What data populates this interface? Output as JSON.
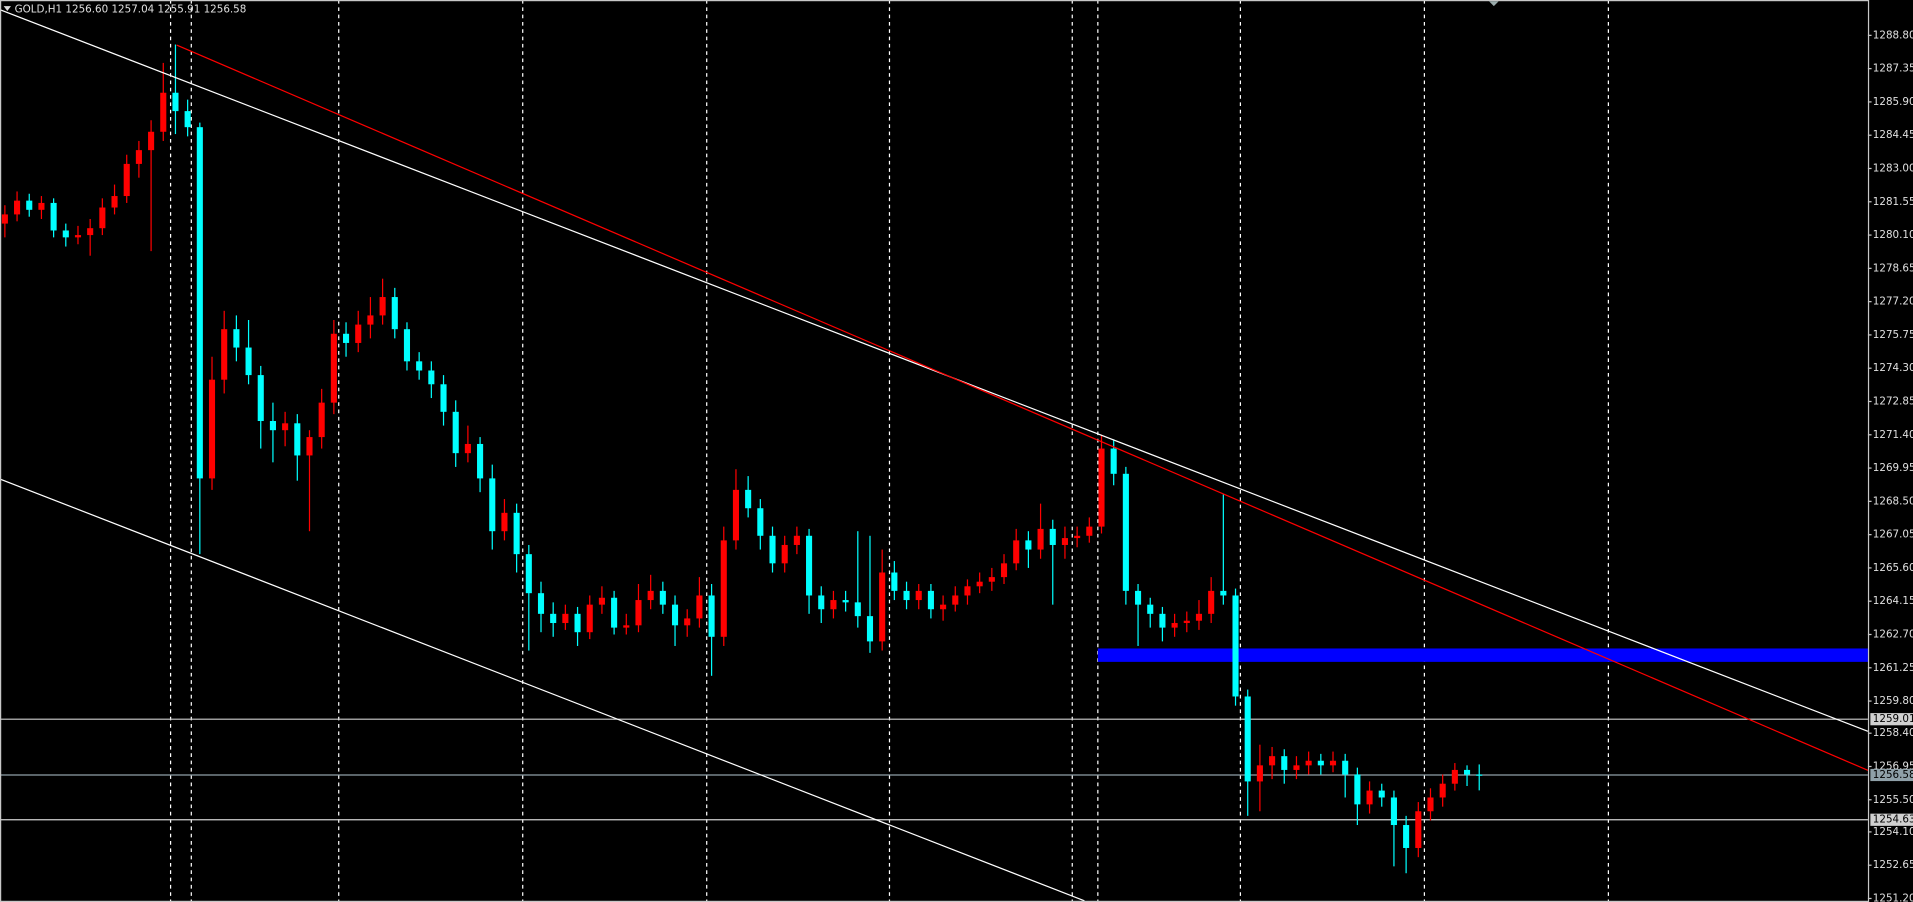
{
  "chart_data": {
    "type": "candlestick",
    "title": "GOLD,H1  1256.60 1257.04 1255.91 1256.58",
    "bull_color": "#ff0000",
    "bear_color": "#00ffff",
    "ylim": [
      1251.1,
      1290.34
    ],
    "yticks": [
      {
        "value": 1288.8,
        "label": "1288.80"
      },
      {
        "value": 1287.35,
        "label": "1287.35"
      },
      {
        "value": 1285.9,
        "label": "1285.90"
      },
      {
        "value": 1284.45,
        "label": "1284.45"
      },
      {
        "value": 1283.0,
        "label": "1283.00"
      },
      {
        "value": 1281.55,
        "label": "1281.55"
      },
      {
        "value": 1280.1,
        "label": "1280.10"
      },
      {
        "value": 1278.65,
        "label": "1278.65"
      },
      {
        "value": 1277.2,
        "label": "1277.20"
      },
      {
        "value": 1275.75,
        "label": "1275.75"
      },
      {
        "value": 1274.3,
        "label": "1274.30"
      },
      {
        "value": 1272.85,
        "label": "1272.85"
      },
      {
        "value": 1271.4,
        "label": "1271.40"
      },
      {
        "value": 1269.95,
        "label": "1269.95"
      },
      {
        "value": 1268.5,
        "label": "1268.50"
      },
      {
        "value": 1267.05,
        "label": "1267.05"
      },
      {
        "value": 1265.6,
        "label": "1265.60"
      },
      {
        "value": 1264.15,
        "label": "1264.15"
      },
      {
        "value": 1262.7,
        "label": "1262.70"
      },
      {
        "value": 1261.25,
        "label": "1261.25"
      },
      {
        "value": 1259.8,
        "label": "1259.80"
      },
      {
        "value": 1258.4,
        "label": "1258.40"
      },
      {
        "value": 1256.95,
        "label": "1256.95"
      },
      {
        "value": 1255.5,
        "label": "1255.50"
      },
      {
        "value": 1254.1,
        "label": "1254.10"
      },
      {
        "value": 1252.65,
        "label": "1252.65"
      },
      {
        "value": 1251.2,
        "label": "1251.20"
      }
    ],
    "hlines": [
      {
        "value": 1259.01,
        "color": "#d0d0d0"
      },
      {
        "value": 1256.58,
        "color": "#8fa0a8"
      },
      {
        "value": 1254.63,
        "color": "#d0d0d0"
      }
    ],
    "candles": [
      [
        1280.6,
        1281.4,
        1280.0,
        1281.0
      ],
      [
        1281.0,
        1282.0,
        1280.7,
        1281.6
      ],
      [
        1281.6,
        1281.9,
        1280.9,
        1281.2
      ],
      [
        1281.2,
        1281.8,
        1280.8,
        1281.5
      ],
      [
        1281.5,
        1281.7,
        1280.0,
        1280.3
      ],
      [
        1280.3,
        1280.6,
        1279.6,
        1280.0
      ],
      [
        1280.0,
        1280.5,
        1279.7,
        1280.1
      ],
      [
        1280.1,
        1280.8,
        1279.2,
        1280.4
      ],
      [
        1280.4,
        1281.7,
        1280.1,
        1281.3
      ],
      [
        1281.3,
        1282.3,
        1281.0,
        1281.8
      ],
      [
        1281.8,
        1283.6,
        1281.5,
        1283.2
      ],
      [
        1283.2,
        1284.2,
        1282.6,
        1283.8
      ],
      [
        1283.8,
        1285.1,
        1279.4,
        1284.6
      ],
      [
        1284.6,
        1287.6,
        1284.2,
        1286.3
      ],
      [
        1286.3,
        1288.4,
        1284.5,
        1285.5
      ],
      [
        1285.5,
        1286.0,
        1284.4,
        1284.8
      ],
      [
        1284.8,
        1285.0,
        1266.2,
        1269.5
      ],
      [
        1269.5,
        1274.8,
        1269.0,
        1273.8
      ],
      [
        1273.8,
        1276.8,
        1273.2,
        1276.0
      ],
      [
        1276.0,
        1276.6,
        1274.6,
        1275.2
      ],
      [
        1275.2,
        1276.4,
        1273.6,
        1274.0
      ],
      [
        1274.0,
        1274.4,
        1270.8,
        1272.0
      ],
      [
        1272.0,
        1272.8,
        1270.2,
        1271.6
      ],
      [
        1271.6,
        1272.4,
        1270.9,
        1271.9
      ],
      [
        1271.9,
        1272.3,
        1269.4,
        1270.5
      ],
      [
        1270.5,
        1271.6,
        1267.2,
        1271.3
      ],
      [
        1271.3,
        1273.4,
        1270.8,
        1272.8
      ],
      [
        1272.8,
        1276.4,
        1272.3,
        1275.8
      ],
      [
        1275.8,
        1276.3,
        1274.8,
        1275.4
      ],
      [
        1275.4,
        1276.8,
        1275.0,
        1276.2
      ],
      [
        1276.2,
        1277.4,
        1275.6,
        1276.6
      ],
      [
        1276.6,
        1278.2,
        1276.2,
        1277.4
      ],
      [
        1277.4,
        1277.8,
        1275.6,
        1276.0
      ],
      [
        1276.0,
        1276.3,
        1274.2,
        1274.6
      ],
      [
        1274.6,
        1275.0,
        1273.8,
        1274.2
      ],
      [
        1274.2,
        1274.6,
        1273.0,
        1273.6
      ],
      [
        1273.6,
        1274.0,
        1271.8,
        1272.4
      ],
      [
        1272.4,
        1272.9,
        1270.0,
        1270.6
      ],
      [
        1270.6,
        1271.8,
        1270.2,
        1271.0
      ],
      [
        1271.0,
        1271.3,
        1268.9,
        1269.5
      ],
      [
        1269.5,
        1270.1,
        1266.4,
        1267.2
      ],
      [
        1267.2,
        1268.6,
        1266.8,
        1268.0
      ],
      [
        1268.0,
        1268.4,
        1265.4,
        1266.2
      ],
      [
        1266.2,
        1266.6,
        1262.0,
        1264.5
      ],
      [
        1264.5,
        1265.0,
        1262.8,
        1263.6
      ],
      [
        1263.6,
        1264.1,
        1262.6,
        1263.2
      ],
      [
        1263.2,
        1264.0,
        1262.9,
        1263.6
      ],
      [
        1263.6,
        1263.9,
        1262.2,
        1262.8
      ],
      [
        1262.8,
        1264.4,
        1262.5,
        1264.0
      ],
      [
        1264.0,
        1264.8,
        1263.6,
        1264.3
      ],
      [
        1264.3,
        1264.6,
        1262.7,
        1263.0
      ],
      [
        1263.0,
        1263.6,
        1262.7,
        1263.1
      ],
      [
        1263.1,
        1264.9,
        1262.8,
        1264.2
      ],
      [
        1264.2,
        1265.3,
        1263.8,
        1264.6
      ],
      [
        1264.6,
        1265.0,
        1263.6,
        1264.0
      ],
      [
        1264.0,
        1264.4,
        1262.2,
        1263.1
      ],
      [
        1263.1,
        1263.8,
        1262.6,
        1263.4
      ],
      [
        1263.4,
        1265.2,
        1263.0,
        1264.4
      ],
      [
        1264.4,
        1264.9,
        1260.9,
        1262.6
      ],
      [
        1262.6,
        1267.4,
        1262.2,
        1266.8
      ],
      [
        1266.8,
        1269.9,
        1266.4,
        1269.0
      ],
      [
        1269.0,
        1269.6,
        1267.8,
        1268.2
      ],
      [
        1268.2,
        1268.6,
        1266.4,
        1267.0
      ],
      [
        1267.0,
        1267.4,
        1265.4,
        1265.8
      ],
      [
        1265.8,
        1267.0,
        1265.4,
        1266.6
      ],
      [
        1266.6,
        1267.4,
        1266.2,
        1267.0
      ],
      [
        1267.0,
        1267.3,
        1263.6,
        1264.4
      ],
      [
        1264.4,
        1264.8,
        1263.2,
        1263.8
      ],
      [
        1263.8,
        1264.6,
        1263.4,
        1264.2
      ],
      [
        1264.2,
        1264.6,
        1263.7,
        1264.1
      ],
      [
        1264.1,
        1267.2,
        1263.0,
        1263.5
      ],
      [
        1263.5,
        1267.0,
        1261.9,
        1262.4
      ],
      [
        1262.4,
        1266.4,
        1262.0,
        1265.4
      ],
      [
        1265.4,
        1265.9,
        1264.2,
        1264.6
      ],
      [
        1264.6,
        1265.0,
        1263.8,
        1264.2
      ],
      [
        1264.2,
        1264.9,
        1263.8,
        1264.6
      ],
      [
        1264.6,
        1264.9,
        1263.4,
        1263.8
      ],
      [
        1263.8,
        1264.4,
        1263.3,
        1264.0
      ],
      [
        1264.0,
        1264.8,
        1263.7,
        1264.4
      ],
      [
        1264.4,
        1265.1,
        1264.0,
        1264.8
      ],
      [
        1264.8,
        1265.4,
        1264.5,
        1265.0
      ],
      [
        1265.0,
        1265.6,
        1264.6,
        1265.2
      ],
      [
        1265.2,
        1266.2,
        1264.9,
        1265.8
      ],
      [
        1265.8,
        1267.3,
        1265.5,
        1266.8
      ],
      [
        1266.8,
        1267.2,
        1265.6,
        1266.4
      ],
      [
        1266.4,
        1268.4,
        1266.0,
        1267.3
      ],
      [
        1267.3,
        1267.7,
        1264.0,
        1266.6
      ],
      [
        1266.6,
        1267.4,
        1266.0,
        1266.9
      ],
      [
        1266.9,
        1267.4,
        1266.5,
        1267.0
      ],
      [
        1267.0,
        1267.8,
        1266.7,
        1267.4
      ],
      [
        1267.4,
        1271.4,
        1267.1,
        1270.8
      ],
      [
        1270.8,
        1271.2,
        1269.2,
        1269.7
      ],
      [
        1269.7,
        1270.0,
        1264.0,
        1264.6
      ],
      [
        1264.6,
        1264.9,
        1262.2,
        1264.0
      ],
      [
        1264.0,
        1264.3,
        1263.0,
        1263.6
      ],
      [
        1263.6,
        1263.9,
        1262.4,
        1263.0
      ],
      [
        1263.0,
        1263.6,
        1262.6,
        1263.2
      ],
      [
        1263.2,
        1263.7,
        1262.8,
        1263.3
      ],
      [
        1263.3,
        1264.2,
        1262.9,
        1263.6
      ],
      [
        1263.6,
        1265.2,
        1263.2,
        1264.6
      ],
      [
        1264.6,
        1268.8,
        1264.0,
        1264.4
      ],
      [
        1264.4,
        1264.7,
        1259.6,
        1260.0
      ],
      [
        1260.0,
        1260.3,
        1254.8,
        1256.3
      ],
      [
        1256.3,
        1257.9,
        1255.0,
        1257.0
      ],
      [
        1257.0,
        1257.8,
        1256.4,
        1257.4
      ],
      [
        1257.4,
        1257.7,
        1256.2,
        1256.8
      ],
      [
        1256.8,
        1257.4,
        1256.4,
        1257.0
      ],
      [
        1257.0,
        1257.6,
        1256.6,
        1257.2
      ],
      [
        1257.2,
        1257.5,
        1256.6,
        1257.0
      ],
      [
        1257.0,
        1257.6,
        1256.7,
        1257.2
      ],
      [
        1257.2,
        1257.5,
        1255.6,
        1256.6
      ],
      [
        1256.6,
        1256.9,
        1254.4,
        1255.3
      ],
      [
        1255.3,
        1256.3,
        1254.9,
        1255.9
      ],
      [
        1255.9,
        1256.2,
        1255.2,
        1255.6
      ],
      [
        1255.6,
        1255.9,
        1252.6,
        1254.4
      ],
      [
        1254.4,
        1254.8,
        1252.3,
        1253.4
      ],
      [
        1253.4,
        1255.4,
        1253.0,
        1255.0
      ],
      [
        1255.0,
        1256.0,
        1254.6,
        1255.6
      ],
      [
        1255.6,
        1256.6,
        1255.2,
        1256.2
      ],
      [
        1256.2,
        1257.1,
        1255.9,
        1256.8
      ],
      [
        1256.8,
        1257.0,
        1256.1,
        1256.6
      ],
      [
        1256.6,
        1257.04,
        1255.91,
        1256.58
      ]
    ]
  }
}
